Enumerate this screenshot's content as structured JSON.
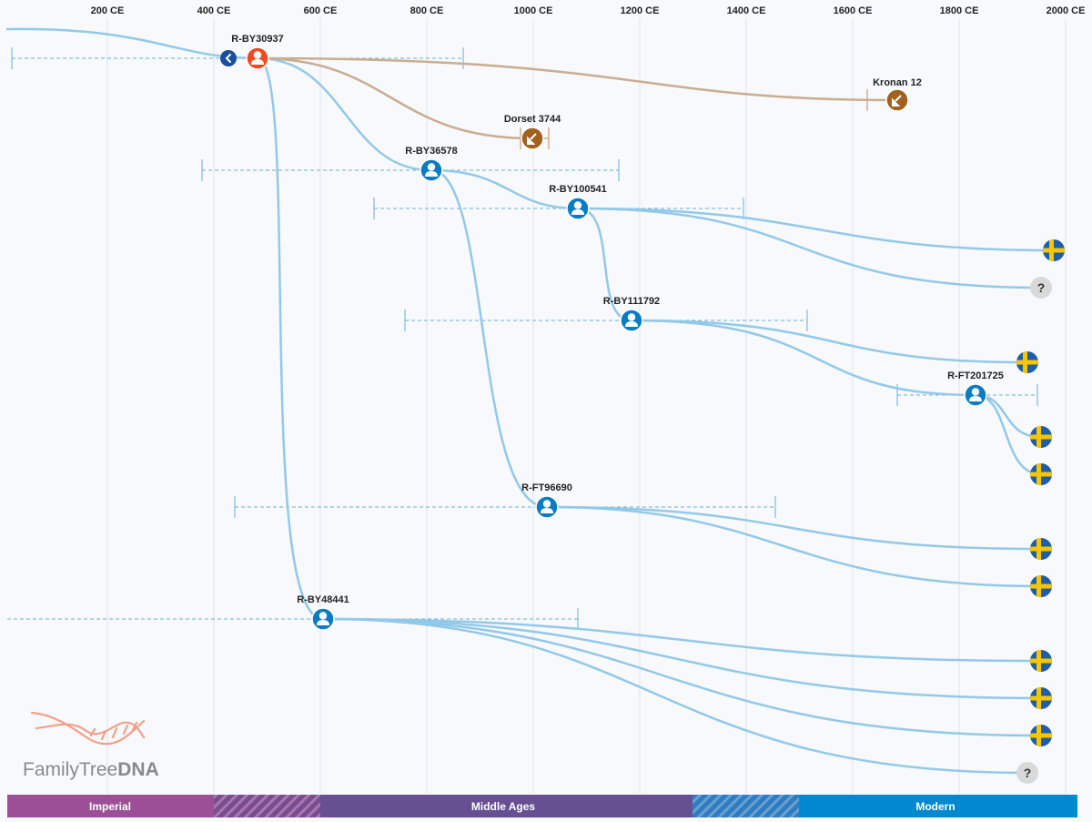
{
  "axis": {
    "labels": [
      "200 CE",
      "400 CE",
      "600 CE",
      "800 CE",
      "1000 CE",
      "1200 CE",
      "1400 CE",
      "1600 CE",
      "1800 CE",
      "2000 CE"
    ]
  },
  "eras": [
    {
      "label": "Imperial",
      "color": "#9c4f96"
    },
    {
      "label": "",
      "color": "#7d4a8f",
      "hatched": true
    },
    {
      "label": "Middle Ages",
      "color": "#665092"
    },
    {
      "label": "",
      "color": "#2f7cc0",
      "hatched": true
    },
    {
      "label": "Modern",
      "color": "#0089d0"
    }
  ],
  "nodes": {
    "root": {
      "label": "R-BY30937",
      "color": "#ee4a24"
    },
    "by36578": {
      "label": "R-BY36578"
    },
    "by100541": {
      "label": "R-BY100541"
    },
    "by111792": {
      "label": "R-BY111792"
    },
    "ft201725": {
      "label": "R-FT201725"
    },
    "ft96690": {
      "label": "R-FT96690"
    },
    "by48441": {
      "label": "R-BY48441"
    }
  },
  "ancient_samples": {
    "dorset": {
      "label": "Dorset 3744"
    },
    "kronan": {
      "label": "Kronan 12"
    }
  },
  "leaves": {
    "question_mark": "?"
  },
  "logo": {
    "text_regular": "FamilyTree",
    "text_bold": "DNA"
  },
  "colors": {
    "node_blue": "#0a7cc4",
    "branch_blue": "#93c9e8",
    "ancient_brown": "#a0621e",
    "ancient_line": "#c9ad92",
    "flag_blue": "#1f5da8",
    "flag_yellow": "#f7c600",
    "background": "#f7f9fc"
  }
}
